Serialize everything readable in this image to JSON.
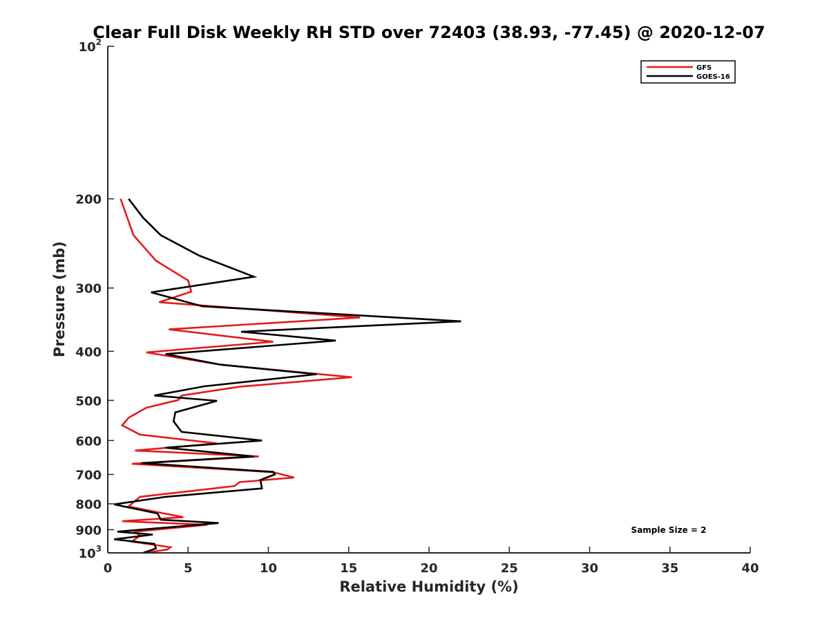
{
  "chart_data": {
    "type": "line",
    "title": "Clear Full Disk Weekly RH STD over 72403 (38.93, -77.45) @ 2020-12-07",
    "xlabel": "Relative Humidity (%)",
    "ylabel": "Pressure (mb)",
    "xlim": [
      0,
      40
    ],
    "ylim": [
      100,
      1000
    ],
    "yscale": "log",
    "y_reversed": true,
    "x_ticks": [
      0,
      5,
      10,
      15,
      20,
      25,
      30,
      35,
      40
    ],
    "x_tick_labels": [
      "0",
      "5",
      "10",
      "15",
      "20",
      "25",
      "30",
      "35",
      "40"
    ],
    "y_ticks": [
      100,
      200,
      300,
      400,
      500,
      600,
      700,
      800,
      900,
      1000
    ],
    "y_tick_labels": [
      "10^2",
      "200",
      "300",
      "400",
      "500",
      "600",
      "700",
      "800",
      "900",
      "10^3"
    ],
    "grid": false,
    "legend_position": "top-right",
    "annotation": "Sample Size = 2",
    "series": [
      {
        "name": "GFS",
        "color": "#e41a1c",
        "x": [
          0.8,
          1.6,
          3.0,
          5.0,
          5.2,
          3.2,
          15.7,
          3.8,
          10.3,
          2.4,
          7.0,
          15.2,
          8.2,
          4.6,
          4.4,
          2.4,
          1.3,
          0.9,
          2.0,
          6.8,
          1.7,
          9.4,
          1.5,
          10.3,
          11.6,
          8.2,
          7.9,
          2.0,
          1.3,
          4.7,
          0.9,
          6.2,
          1.7,
          2.0,
          1.5,
          3.9,
          3.7,
          2.3
        ],
        "y": [
          200,
          236,
          265,
          290,
          305,
          320,
          343,
          362,
          383,
          402,
          425,
          450,
          470,
          489,
          499,
          517,
          541,
          560,
          584,
          608,
          628,
          645,
          667,
          693,
          710,
          725,
          738,
          775,
          810,
          850,
          866,
          880,
          908,
          925,
          950,
          975,
          985,
          1000
        ]
      },
      {
        "name": "GOES-16",
        "color": "#000000",
        "x": [
          1.3,
          2.2,
          3.3,
          5.7,
          9.1,
          2.7,
          5.9,
          22.0,
          8.3,
          14.2,
          3.6,
          7.0,
          13.0,
          6.0,
          2.9,
          6.8,
          4.2,
          4.1,
          4.6,
          9.6,
          3.6,
          9.1,
          2.1,
          10.3,
          10.4,
          9.5,
          9.6,
          3.6,
          0.4,
          3.1,
          3.3,
          6.9,
          0.6,
          2.8,
          0.4,
          2.9,
          3.0,
          2.2
        ],
        "y": [
          200,
          218,
          236,
          259,
          285,
          306,
          326,
          349,
          366,
          381,
          405,
          425,
          444,
          469,
          489,
          501,
          528,
          550,
          577,
          600,
          620,
          645,
          665,
          692,
          700,
          718,
          746,
          775,
          802,
          836,
          860,
          873,
          908,
          920,
          940,
          960,
          980,
          1000
        ]
      }
    ]
  }
}
